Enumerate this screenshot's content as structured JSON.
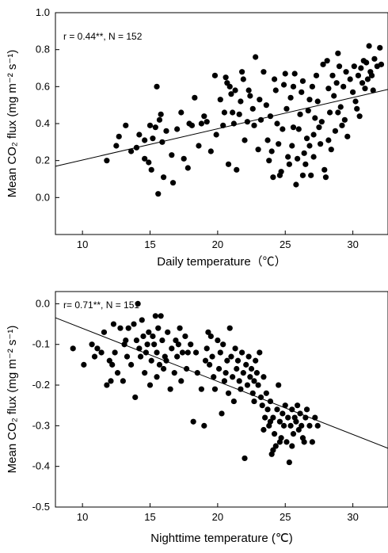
{
  "chart_data": [
    {
      "type": "scatter",
      "annotation": "r = 0.44**, N = 152",
      "xlabel": "Daily temperature（℃）",
      "ylabel": "Mean CO₂ flux (mg m⁻² s⁻¹)",
      "xlim": [
        8,
        32.6
      ],
      "ylim": [
        -0.2,
        1.0
      ],
      "xticks": [
        10,
        15,
        20,
        25,
        30
      ],
      "yticks": [
        0.0,
        0.2,
        0.4,
        0.6,
        0.8,
        1.0
      ],
      "ytick_labels": [
        "0.0",
        "0.2",
        "0.4",
        "0.6",
        "0.8",
        "1.0"
      ],
      "grid": false,
      "legend": "none",
      "trendline": {
        "slope": 0.0169,
        "intercept": 0.034
      },
      "points": [
        [
          11.8,
          0.2
        ],
        [
          12.5,
          0.28
        ],
        [
          12.7,
          0.33
        ],
        [
          13.2,
          0.39
        ],
        [
          14.0,
          0.27
        ],
        [
          14.6,
          0.31
        ],
        [
          14.6,
          0.21
        ],
        [
          14.9,
          0.19
        ],
        [
          15.1,
          0.15
        ],
        [
          15.0,
          0.39
        ],
        [
          15.2,
          0.32
        ],
        [
          15.4,
          0.38
        ],
        [
          15.5,
          0.6
        ],
        [
          15.6,
          0.02
        ],
        [
          15.7,
          0.42
        ],
        [
          15.8,
          0.45
        ],
        [
          15.9,
          0.3
        ],
        [
          16.0,
          0.11
        ],
        [
          16.6,
          0.23
        ],
        [
          16.7,
          0.08
        ],
        [
          17.0,
          0.37
        ],
        [
          17.3,
          0.46
        ],
        [
          17.8,
          0.16
        ],
        [
          17.9,
          0.4
        ],
        [
          18.1,
          0.39
        ],
        [
          18.3,
          0.54
        ],
        [
          18.8,
          0.4
        ],
        [
          19.0,
          0.44
        ],
        [
          19.2,
          0.41
        ],
        [
          19.5,
          0.25
        ],
        [
          19.8,
          0.66
        ],
        [
          20.2,
          0.53
        ],
        [
          20.4,
          0.39
        ],
        [
          20.6,
          0.65
        ],
        [
          20.7,
          0.62
        ],
        [
          20.8,
          0.18
        ],
        [
          20.9,
          0.6
        ],
        [
          21.0,
          0.56
        ],
        [
          21.1,
          0.46
        ],
        [
          21.2,
          0.4
        ],
        [
          21.3,
          0.58
        ],
        [
          21.4,
          0.15
        ],
        [
          21.6,
          0.45
        ],
        [
          21.8,
          0.68
        ],
        [
          21.9,
          0.64
        ],
        [
          22.0,
          0.31
        ],
        [
          22.2,
          0.41
        ],
        [
          22.4,
          0.55
        ],
        [
          22.6,
          0.48
        ],
        [
          22.8,
          0.76
        ],
        [
          23.0,
          0.26
        ],
        [
          23.2,
          0.42
        ],
        [
          23.4,
          0.68
        ],
        [
          23.6,
          0.5
        ],
        [
          23.7,
          0.31
        ],
        [
          23.8,
          0.2
        ],
        [
          24.0,
          0.25
        ],
        [
          24.1,
          0.11
        ],
        [
          24.3,
          0.58
        ],
        [
          24.4,
          0.4
        ],
        [
          24.5,
          0.29
        ],
        [
          24.6,
          0.12
        ],
        [
          24.7,
          0.14
        ],
        [
          24.8,
          0.37
        ],
        [
          24.9,
          0.61
        ],
        [
          25.0,
          0.67
        ],
        [
          25.1,
          0.48
        ],
        [
          25.2,
          0.22
        ],
        [
          25.3,
          0.18
        ],
        [
          25.4,
          0.54
        ],
        [
          25.5,
          0.28
        ],
        [
          25.6,
          0.6
        ],
        [
          25.7,
          0.67
        ],
        [
          25.8,
          0.07
        ],
        [
          25.9,
          0.21
        ],
        [
          26.0,
          0.37
        ],
        [
          26.1,
          0.45
        ],
        [
          26.2,
          0.57
        ],
        [
          26.3,
          0.63
        ],
        [
          26.4,
          0.24
        ],
        [
          26.5,
          0.18
        ],
        [
          26.6,
          0.32
        ],
        [
          26.7,
          0.47
        ],
        [
          26.8,
          0.53
        ],
        [
          26.9,
          0.12
        ],
        [
          27.0,
          0.6
        ],
        [
          27.1,
          0.34
        ],
        [
          27.2,
          0.43
        ],
        [
          27.3,
          0.66
        ],
        [
          27.4,
          0.52
        ],
        [
          27.5,
          0.38
        ],
        [
          27.6,
          0.29
        ],
        [
          27.7,
          0.41
        ],
        [
          27.8,
          0.72
        ],
        [
          27.9,
          0.15
        ],
        [
          28.0,
          0.11
        ],
        [
          28.1,
          0.74
        ],
        [
          28.2,
          0.59
        ],
        [
          28.3,
          0.46
        ],
        [
          28.4,
          0.26
        ],
        [
          28.5,
          0.66
        ],
        [
          28.6,
          0.55
        ],
        [
          28.7,
          0.36
        ],
        [
          28.8,
          0.62
        ],
        [
          28.9,
          0.78
        ],
        [
          29.0,
          0.71
        ],
        [
          29.1,
          0.49
        ],
        [
          29.2,
          0.39
        ],
        [
          29.3,
          0.6
        ],
        [
          29.5,
          0.68
        ],
        [
          29.6,
          0.33
        ],
        [
          29.8,
          0.64
        ],
        [
          30.0,
          0.57
        ],
        [
          30.1,
          0.71
        ],
        [
          30.2,
          0.52
        ],
        [
          30.4,
          0.66
        ],
        [
          30.5,
          0.44
        ],
        [
          30.6,
          0.7
        ],
        [
          30.7,
          0.62
        ],
        [
          30.8,
          0.74
        ],
        [
          30.9,
          0.59
        ],
        [
          31.0,
          0.73
        ],
        [
          31.1,
          0.64
        ],
        [
          31.2,
          0.82
        ],
        [
          31.3,
          0.68
        ],
        [
          31.5,
          0.58
        ],
        [
          31.6,
          0.75
        ],
        [
          31.8,
          0.71
        ],
        [
          32.0,
          0.81
        ],
        [
          32.1,
          0.72
        ],
        [
          22.3,
          0.58
        ],
        [
          23.9,
          0.44
        ],
        [
          25.6,
          0.38
        ],
        [
          26.8,
          0.28
        ],
        [
          28.2,
          0.31
        ],
        [
          29.4,
          0.42
        ],
        [
          19.9,
          0.34
        ],
        [
          18.6,
          0.28
        ],
        [
          16.2,
          0.36
        ],
        [
          17.5,
          0.21
        ],
        [
          21.7,
          0.52
        ],
        [
          24.2,
          0.64
        ],
        [
          27.1,
          0.22
        ],
        [
          30.3,
          0.48
        ],
        [
          14.2,
          0.34
        ],
        [
          13.6,
          0.25
        ],
        [
          22.7,
          0.39
        ],
        [
          26.3,
          0.12
        ],
        [
          28.9,
          0.46
        ],
        [
          31.4,
          0.66
        ],
        [
          20.5,
          0.46
        ],
        [
          23.1,
          0.53
        ]
      ]
    },
    {
      "type": "scatter",
      "annotation": "r= 0.71**, N = 151",
      "xlabel": "Nighttime temperature (℃)",
      "ylabel": "Mean CO₂ flux (mg m⁻² s⁻¹)",
      "xlim": [
        8,
        32.6
      ],
      "ylim": [
        -0.5,
        0.03
      ],
      "xticks": [
        10,
        15,
        20,
        25,
        30
      ],
      "yticks": [
        0.0,
        -0.1,
        -0.2,
        -0.3,
        -0.4,
        -0.5
      ],
      "ytick_labels": [
        "0.0",
        "-0.1",
        "-0.2",
        "-0.3",
        "-0.4",
        "-0.5"
      ],
      "grid": false,
      "legend": "none",
      "trendline": {
        "slope": -0.01305,
        "intercept": 0.07
      },
      "points": [
        [
          9.3,
          -0.11
        ],
        [
          10.1,
          -0.15
        ],
        [
          10.7,
          -0.1
        ],
        [
          11.1,
          -0.11
        ],
        [
          11.4,
          -0.12
        ],
        [
          11.6,
          -0.07
        ],
        [
          11.8,
          -0.2
        ],
        [
          12.0,
          -0.14
        ],
        [
          12.1,
          -0.19
        ],
        [
          12.3,
          -0.05
        ],
        [
          12.4,
          -0.12
        ],
        [
          12.6,
          -0.17
        ],
        [
          12.8,
          -0.06
        ],
        [
          13.0,
          -0.19
        ],
        [
          13.1,
          -0.1
        ],
        [
          13.3,
          -0.13
        ],
        [
          13.4,
          -0.06
        ],
        [
          13.6,
          -0.15
        ],
        [
          13.8,
          -0.05
        ],
        [
          13.9,
          -0.23
        ],
        [
          14.0,
          -0.09
        ],
        [
          14.1,
          -0.0
        ],
        [
          14.2,
          -0.11
        ],
        [
          14.3,
          -0.13
        ],
        [
          14.4,
          -0.04
        ],
        [
          14.5,
          -0.08
        ],
        [
          14.6,
          -0.17
        ],
        [
          14.7,
          -0.12
        ],
        [
          14.8,
          -0.1
        ],
        [
          14.9,
          -0.07
        ],
        [
          15.0,
          -0.2
        ],
        [
          15.1,
          -0.14
        ],
        [
          15.2,
          -0.08
        ],
        [
          15.3,
          -0.1
        ],
        [
          15.4,
          -0.03
        ],
        [
          15.5,
          -0.12
        ],
        [
          15.6,
          -0.06
        ],
        [
          15.7,
          -0.15
        ],
        [
          15.8,
          -0.03
        ],
        [
          15.9,
          -0.09
        ],
        [
          16.0,
          -0.16
        ],
        [
          16.1,
          -0.13
        ],
        [
          16.3,
          -0.07
        ],
        [
          16.5,
          -0.21
        ],
        [
          16.6,
          -0.11
        ],
        [
          16.8,
          -0.17
        ],
        [
          16.9,
          -0.09
        ],
        [
          17.0,
          -0.13
        ],
        [
          17.2,
          -0.06
        ],
        [
          17.3,
          -0.19
        ],
        [
          17.4,
          -0.12
        ],
        [
          17.6,
          -0.08
        ],
        [
          17.7,
          -0.16
        ],
        [
          17.8,
          -0.12
        ],
        [
          18.0,
          -0.1
        ],
        [
          18.2,
          -0.29
        ],
        [
          18.5,
          -0.17
        ],
        [
          18.8,
          -0.21
        ],
        [
          19.0,
          -0.3
        ],
        [
          19.1,
          -0.14
        ],
        [
          19.2,
          -0.11
        ],
        [
          19.3,
          -0.07
        ],
        [
          19.5,
          -0.08
        ],
        [
          19.6,
          -0.13
        ],
        [
          19.7,
          -0.18
        ],
        [
          19.8,
          -0.21
        ],
        [
          20.0,
          -0.09
        ],
        [
          20.1,
          -0.16
        ],
        [
          20.2,
          -0.12
        ],
        [
          20.3,
          -0.27
        ],
        [
          20.4,
          -0.1
        ],
        [
          20.5,
          -0.19
        ],
        [
          20.7,
          -0.14
        ],
        [
          20.8,
          -0.22
        ],
        [
          20.9,
          -0.06
        ],
        [
          21.0,
          -0.13
        ],
        [
          21.1,
          -0.18
        ],
        [
          21.2,
          -0.24
        ],
        [
          21.3,
          -0.11
        ],
        [
          21.4,
          -0.16
        ],
        [
          21.5,
          -0.14
        ],
        [
          21.7,
          -0.21
        ],
        [
          21.8,
          -0.12
        ],
        [
          21.9,
          -0.17
        ],
        [
          22.0,
          -0.38
        ],
        [
          22.1,
          -0.15
        ],
        [
          22.2,
          -0.2
        ],
        [
          22.3,
          -0.13
        ],
        [
          22.4,
          -0.18
        ],
        [
          22.5,
          -0.16
        ],
        [
          22.6,
          -0.22
        ],
        [
          22.7,
          -0.19
        ],
        [
          22.8,
          -0.14
        ],
        [
          22.9,
          -0.17
        ],
        [
          23.0,
          -0.2
        ],
        [
          23.1,
          -0.12
        ],
        [
          23.2,
          -0.23
        ],
        [
          23.3,
          -0.25
        ],
        [
          23.4,
          -0.18
        ],
        [
          23.5,
          -0.28
        ],
        [
          23.6,
          -0.22
        ],
        [
          23.7,
          -0.26
        ],
        [
          23.8,
          -0.3
        ],
        [
          23.9,
          -0.24
        ],
        [
          24.0,
          -0.37
        ],
        [
          24.1,
          -0.28
        ],
        [
          24.2,
          -0.32
        ],
        [
          24.3,
          -0.35
        ],
        [
          24.4,
          -0.26
        ],
        [
          24.5,
          -0.2
        ],
        [
          24.6,
          -0.29
        ],
        [
          24.7,
          -0.33
        ],
        [
          24.8,
          -0.27
        ],
        [
          24.9,
          -0.3
        ],
        [
          25.0,
          -0.25
        ],
        [
          25.1,
          -0.34
        ],
        [
          25.2,
          -0.28
        ],
        [
          25.3,
          -0.39
        ],
        [
          25.4,
          -0.3
        ],
        [
          25.5,
          -0.26
        ],
        [
          25.6,
          -0.32
        ],
        [
          25.7,
          -0.28
        ],
        [
          25.8,
          -0.29
        ],
        [
          25.9,
          -0.25
        ],
        [
          26.0,
          -0.31
        ],
        [
          26.1,
          -0.27
        ],
        [
          26.2,
          -0.3
        ],
        [
          26.4,
          -0.34
        ],
        [
          26.5,
          -0.28
        ],
        [
          26.6,
          -0.26
        ],
        [
          26.8,
          -0.3
        ],
        [
          27.0,
          -0.34
        ],
        [
          27.2,
          -0.28
        ],
        [
          27.4,
          -0.3
        ],
        [
          24.1,
          -0.36
        ],
        [
          23.4,
          -0.31
        ],
        [
          22.7,
          -0.24
        ],
        [
          21.6,
          -0.19
        ],
        [
          20.6,
          -0.17
        ],
        [
          19.4,
          -0.15
        ],
        [
          18.4,
          -0.12
        ],
        [
          17.1,
          -0.1
        ],
        [
          16.2,
          -0.14
        ],
        [
          15.5,
          -0.18
        ],
        [
          13.2,
          -0.09
        ],
        [
          12.2,
          -0.15
        ],
        [
          10.9,
          -0.13
        ],
        [
          26.3,
          -0.33
        ],
        [
          25.5,
          -0.35
        ],
        [
          24.6,
          -0.34
        ],
        [
          23.9,
          -0.29
        ]
      ]
    }
  ]
}
